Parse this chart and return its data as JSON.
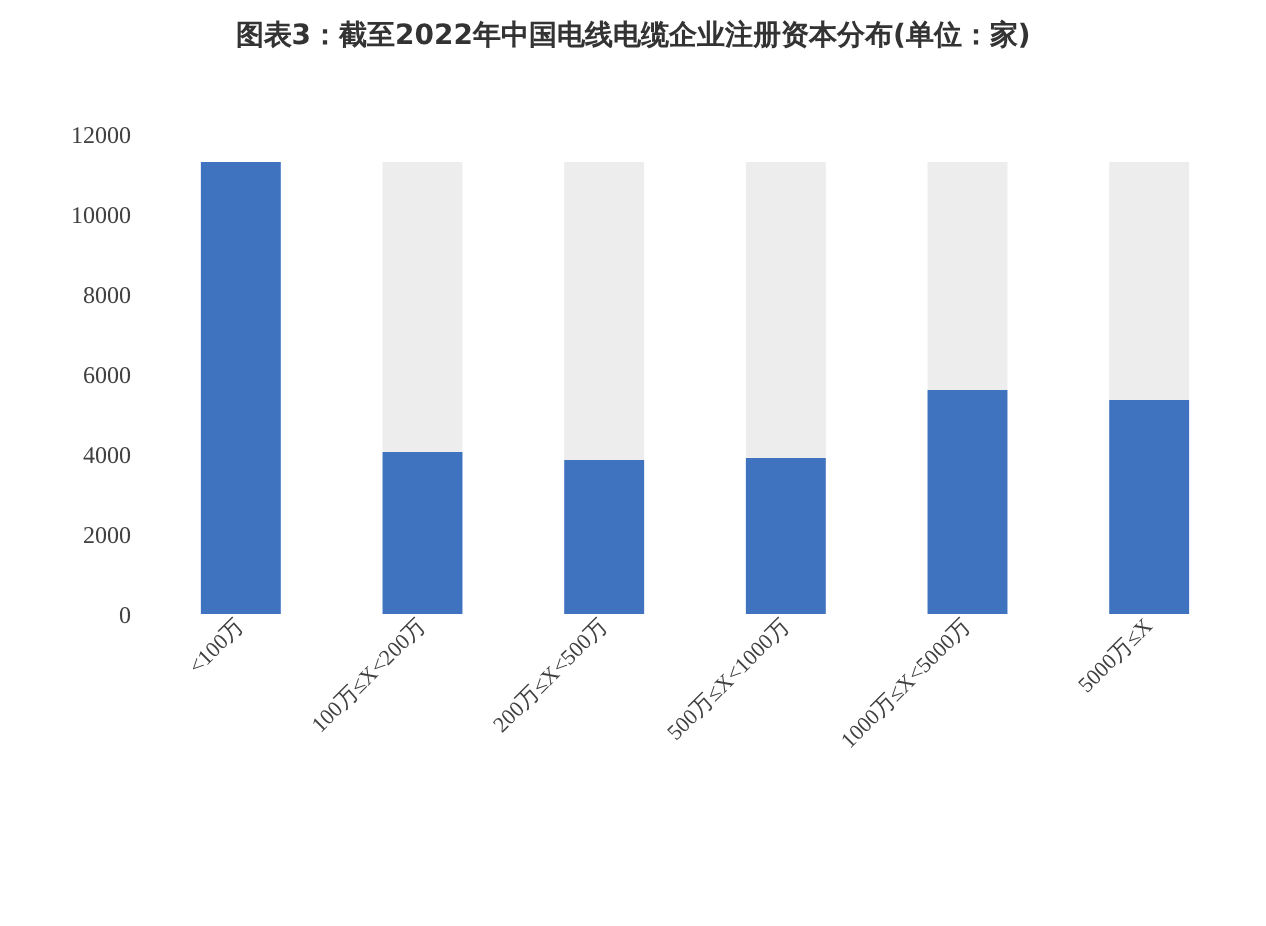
{
  "chart_data": {
    "type": "bar",
    "title": "图表3：截至2022年中国电线电缆企业注册资本分布(单位：家)",
    "categories": [
      "<100万",
      "100万≤X<200万",
      "200万≤X<500万",
      "500万≤X<1000万",
      "1000万≤X<5000万",
      "5000万≤X"
    ],
    "series": [
      {
        "color": "#3f73c0",
        "values": [
          11300,
          4050,
          3850,
          3900,
          5600,
          5350
        ]
      },
      {
        "color": "#ededed",
        "values": [
          0,
          7250,
          7450,
          7400,
          5700,
          5950
        ]
      }
    ],
    "stacked": true,
    "ylim": [
      0,
      12000
    ],
    "yticks": [
      0,
      2000,
      4000,
      6000,
      8000,
      10000,
      12000
    ]
  }
}
